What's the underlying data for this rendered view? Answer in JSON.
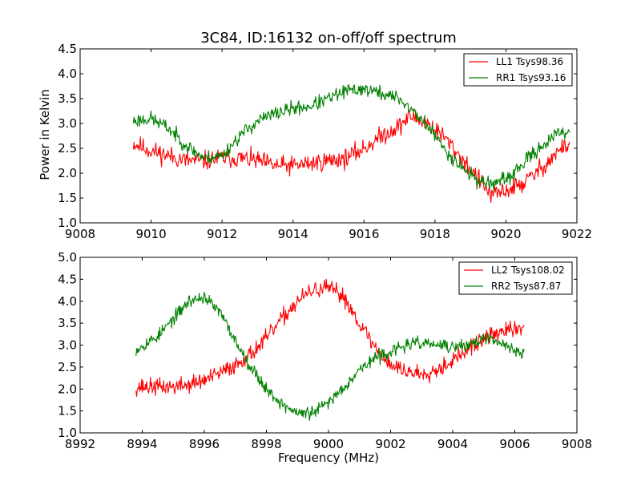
{
  "chart_data": [
    {
      "type": "line",
      "title": "3C84, ID:16132 on-off/off spectrum",
      "xlabel": "",
      "ylabel": "Power in Kelvin",
      "xlim": [
        9008,
        9022
      ],
      "ylim": [
        1.0,
        4.5
      ],
      "xticks": [
        "9008",
        "9010",
        "9012",
        "9014",
        "9016",
        "9018",
        "9020",
        "9022"
      ],
      "yticks": [
        "1.0",
        "1.5",
        "2.0",
        "2.5",
        "3.0",
        "3.5",
        "4.0",
        "4.5"
      ],
      "legend_position": "top-right",
      "series": [
        {
          "name": "LL1 Tsys98.36",
          "color": "#ff0000",
          "x_range": [
            9009.5,
            9021.8
          ],
          "noise": 0.12,
          "seed": 11,
          "profile": [
            [
              9009.5,
              2.6
            ],
            [
              9010.0,
              2.45
            ],
            [
              9010.5,
              2.35
            ],
            [
              9011.0,
              2.25
            ],
            [
              9011.5,
              2.25
            ],
            [
              9012.0,
              2.3
            ],
            [
              9012.5,
              2.3
            ],
            [
              9013.0,
              2.25
            ],
            [
              9013.5,
              2.15
            ],
            [
              9014.0,
              2.15
            ],
            [
              9014.5,
              2.2
            ],
            [
              9015.0,
              2.25
            ],
            [
              9015.5,
              2.3
            ],
            [
              9016.0,
              2.5
            ],
            [
              9016.5,
              2.75
            ],
            [
              9017.0,
              2.95
            ],
            [
              9017.3,
              3.15
            ],
            [
              9017.8,
              3.0
            ],
            [
              9018.3,
              2.7
            ],
            [
              9018.8,
              2.25
            ],
            [
              9019.2,
              1.9
            ],
            [
              9019.6,
              1.55
            ],
            [
              9020.0,
              1.65
            ],
            [
              9020.5,
              1.8
            ],
            [
              9021.0,
              2.1
            ],
            [
              9021.5,
              2.45
            ],
            [
              9021.8,
              2.6
            ]
          ]
        },
        {
          "name": "RR1 Tsys93.16",
          "color": "#008000",
          "x_range": [
            9009.5,
            9021.8
          ],
          "noise": 0.09,
          "seed": 23,
          "profile": [
            [
              9009.5,
              3.05
            ],
            [
              9010.0,
              3.1
            ],
            [
              9010.5,
              2.9
            ],
            [
              9011.0,
              2.55
            ],
            [
              9011.5,
              2.3
            ],
            [
              9012.0,
              2.35
            ],
            [
              9012.5,
              2.75
            ],
            [
              9013.0,
              3.05
            ],
            [
              9013.5,
              3.2
            ],
            [
              9014.0,
              3.3
            ],
            [
              9014.5,
              3.35
            ],
            [
              9015.0,
              3.5
            ],
            [
              9015.5,
              3.65
            ],
            [
              9016.0,
              3.7
            ],
            [
              9016.5,
              3.6
            ],
            [
              9017.0,
              3.5
            ],
            [
              9017.3,
              3.3
            ],
            [
              9017.8,
              2.95
            ],
            [
              9018.3,
              2.45
            ],
            [
              9018.8,
              2.1
            ],
            [
              9019.2,
              1.85
            ],
            [
              9019.6,
              1.8
            ],
            [
              9020.0,
              1.85
            ],
            [
              9020.5,
              2.2
            ],
            [
              9021.0,
              2.55
            ],
            [
              9021.5,
              2.8
            ],
            [
              9021.8,
              2.85
            ]
          ]
        }
      ]
    },
    {
      "type": "line",
      "title": "",
      "xlabel": "Frequency (MHz)",
      "ylabel": "",
      "xlim": [
        8992,
        9008
      ],
      "ylim": [
        1.0,
        5.0
      ],
      "xticks": [
        "8992",
        "8994",
        "8996",
        "8998",
        "9000",
        "9002",
        "9004",
        "9006",
        "9008"
      ],
      "yticks": [
        "1.0",
        "1.5",
        "2.0",
        "2.5",
        "3.0",
        "3.5",
        "4.0",
        "4.5",
        "5.0"
      ],
      "legend_position": "top-right",
      "series": [
        {
          "name": "LL2 Tsys108.02",
          "color": "#ff0000",
          "x_range": [
            8993.8,
            9006.3
          ],
          "noise": 0.12,
          "seed": 37,
          "profile": [
            [
              8993.8,
              2.05
            ],
            [
              8994.5,
              2.05
            ],
            [
              8995.0,
              2.05
            ],
            [
              8995.5,
              2.1
            ],
            [
              8996.0,
              2.2
            ],
            [
              8996.5,
              2.35
            ],
            [
              8997.0,
              2.55
            ],
            [
              8997.5,
              2.8
            ],
            [
              8998.0,
              3.15
            ],
            [
              8998.5,
              3.6
            ],
            [
              8999.0,
              4.0
            ],
            [
              8999.5,
              4.25
            ],
            [
              9000.0,
              4.3
            ],
            [
              9000.5,
              4.1
            ],
            [
              9001.0,
              3.5
            ],
            [
              9001.5,
              2.95
            ],
            [
              9002.0,
              2.55
            ],
            [
              9002.5,
              2.4
            ],
            [
              9003.0,
              2.35
            ],
            [
              9003.5,
              2.45
            ],
            [
              9004.0,
              2.65
            ],
            [
              9004.5,
              2.9
            ],
            [
              9005.0,
              3.15
            ],
            [
              9005.5,
              3.3
            ],
            [
              9006.0,
              3.35
            ],
            [
              9006.3,
              3.4
            ]
          ]
        },
        {
          "name": "RR2 Tsys87.87",
          "color": "#008000",
          "x_range": [
            8993.8,
            9006.3
          ],
          "noise": 0.09,
          "seed": 53,
          "profile": [
            [
              8993.8,
              2.9
            ],
            [
              8994.5,
              3.2
            ],
            [
              8995.0,
              3.6
            ],
            [
              8995.5,
              4.0
            ],
            [
              8996.0,
              4.1
            ],
            [
              8996.5,
              3.75
            ],
            [
              8997.0,
              3.1
            ],
            [
              8997.5,
              2.5
            ],
            [
              8998.0,
              2.0
            ],
            [
              8998.5,
              1.65
            ],
            [
              8999.0,
              1.45
            ],
            [
              8999.5,
              1.45
            ],
            [
              9000.0,
              1.7
            ],
            [
              9000.5,
              2.05
            ],
            [
              9001.0,
              2.45
            ],
            [
              9001.5,
              2.7
            ],
            [
              9002.0,
              2.85
            ],
            [
              9002.5,
              3.0
            ],
            [
              9003.0,
              3.05
            ],
            [
              9003.5,
              3.0
            ],
            [
              9004.0,
              2.95
            ],
            [
              9004.5,
              3.0
            ],
            [
              9005.0,
              3.15
            ],
            [
              9005.5,
              3.05
            ],
            [
              9006.0,
              2.9
            ],
            [
              9006.3,
              2.8
            ]
          ]
        }
      ]
    }
  ]
}
